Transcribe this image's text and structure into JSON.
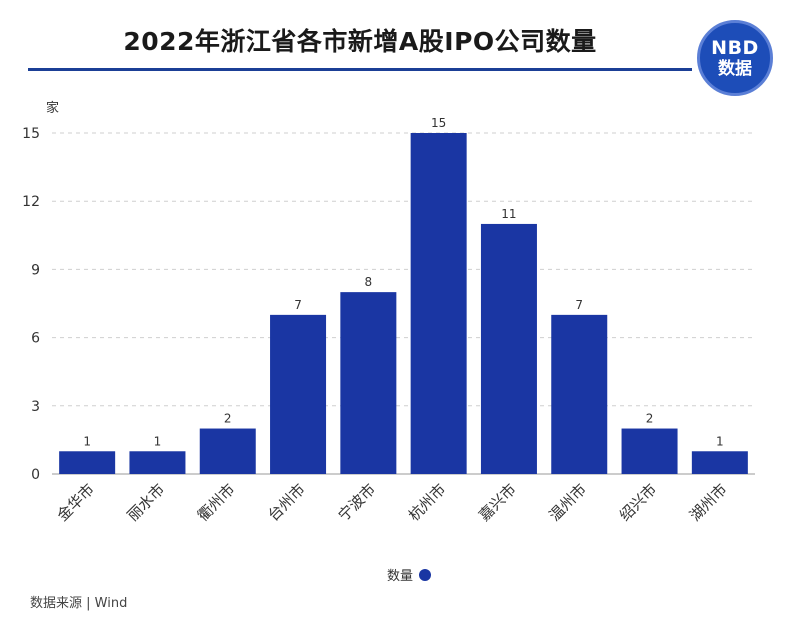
{
  "title": "2022年浙江省各市新增A股IPO公司数量",
  "logo": {
    "line1": "NBD",
    "line2": "数据"
  },
  "source": "数据来源 | Wind",
  "colors": {
    "bar": "#1a36a3",
    "accent": "#1b3f96",
    "grid": "#cfcfcf"
  },
  "chart_data": {
    "type": "bar",
    "title": "2022年浙江省各市新增A股IPO公司数量",
    "categories": [
      "金华市",
      "丽水市",
      "衢州市",
      "台州市",
      "宁波市",
      "杭州市",
      "嘉兴市",
      "温州市",
      "绍兴市",
      "湖州市"
    ],
    "series": [
      {
        "name": "数量",
        "values": [
          1,
          1,
          2,
          7,
          8,
          15,
          11,
          7,
          2,
          1
        ]
      }
    ],
    "values": [
      1,
      1,
      2,
      7,
      8,
      15,
      11,
      7,
      2,
      1
    ],
    "ylabel": "家",
    "xlabel": "",
    "ylim": [
      0,
      15
    ],
    "yticks": [
      0,
      3,
      6,
      9,
      12,
      15
    ],
    "grid": true,
    "legend": "bottom-center"
  }
}
